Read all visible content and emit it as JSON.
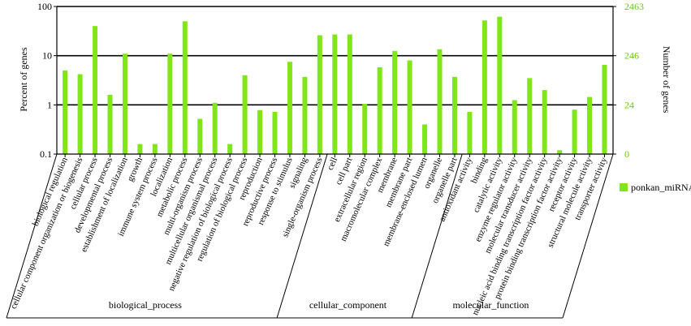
{
  "chart_data": {
    "type": "bar",
    "yscale": "log",
    "ylabel": "Percent of genes",
    "y2label": "Number of genes",
    "y_ticks": [
      "100",
      "10",
      "1",
      "0.1"
    ],
    "y2_ticks": [
      "2463",
      "246",
      "24",
      "0"
    ],
    "ylim": [
      0.1,
      100
    ],
    "colors": {
      "bar": "#80e619",
      "right_axis_text": "#66cc00",
      "axis": "#000000"
    },
    "categories": [
      "biological regulation",
      "cellular component organization or biogenesis",
      "cellular process",
      "developmental process",
      "establishment of localization",
      "growth",
      "immune system process",
      "localization",
      "metabolic process",
      "multi-organism process",
      "multicellular organismal process",
      "negative regulation of biological process",
      "regulation of biological process",
      "reproduction",
      "reproductive process",
      "response to stimulus",
      "signaling",
      "single-organism process",
      "cell",
      "cell part",
      "extracellular region",
      "macromolecular complex",
      "membrane",
      "membrane part",
      "membrane-enclosed lumen",
      "organelle",
      "organelle part",
      "antioxidant activity",
      "binding",
      "catalytic activity",
      "enzyme regulator activity",
      "molecular transducer activity",
      "nucleic acid binding transcription factor activity",
      "protein binding transcription factor activity",
      "receptor activity",
      "structural molecule activity",
      "transporter activity"
    ],
    "series": [
      {
        "name": "ponkan_miRNA",
        "values": [
          5.0,
          4.2,
          40,
          1.6,
          11,
          0.16,
          0.16,
          11,
          50,
          0.52,
          1.1,
          0.16,
          4.0,
          0.78,
          0.72,
          7.5,
          3.7,
          26,
          27,
          27,
          1.05,
          5.8,
          12.5,
          8.0,
          0.4,
          13.5,
          3.7,
          0.72,
          52,
          62,
          1.25,
          3.5,
          2.0,
          0.12,
          0.8,
          1.45,
          6.5
        ]
      }
    ],
    "groups": [
      {
        "label": "biological_process",
        "count": 18
      },
      {
        "label": "cellular_component",
        "count": 9
      },
      {
        "label": "molecular_function",
        "count": 10
      }
    ],
    "legend": {
      "position": "right"
    },
    "grid": "major horizontal lines"
  }
}
